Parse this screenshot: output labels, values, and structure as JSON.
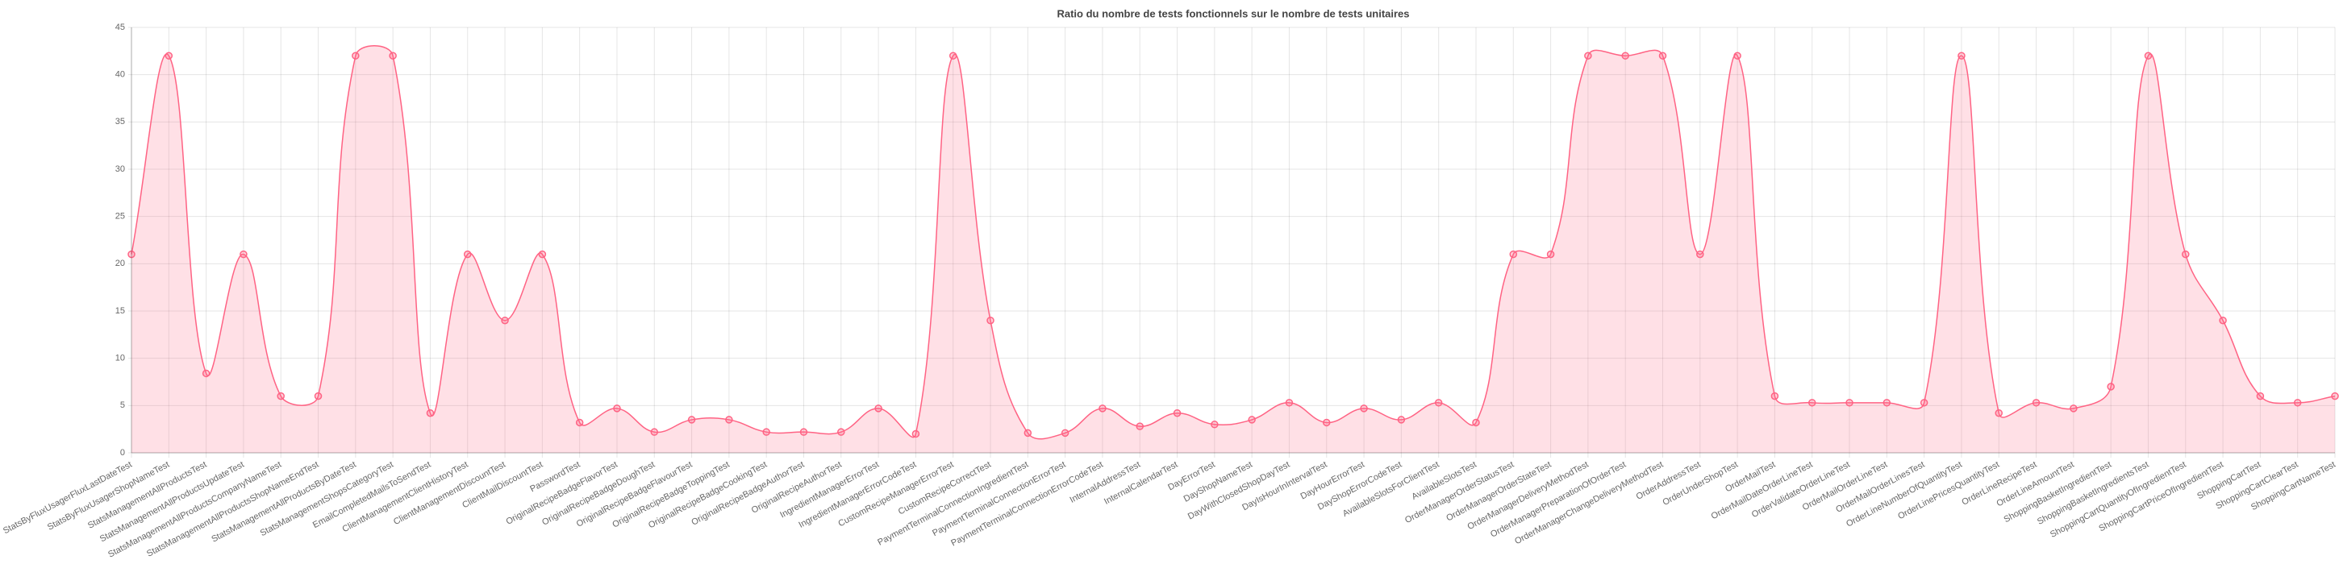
{
  "chart_data": {
    "type": "line",
    "title": "Ratio du nombre de tests fonctionnels sur le nombre de tests unitaires",
    "categories": [
      "StatsByFluxUsagerFluxLastDateTest",
      "StatsByFluxUsagerShopNameTest",
      "StatsManagementAllProductsTest",
      "StatsManagementAllProductsUpdateTest",
      "StatsManagementAllProductsCompanyNameTest",
      "StatsManagementAllProductsShopNameEndTest",
      "StatsManagementAllProductsByDateTest",
      "StatsManagementShopsCategoryTest",
      "EmailCompletedMailsToSendTest",
      "ClientManagementClientHistoryTest",
      "ClientManagementDiscountTest",
      "ClientMailDiscountTest",
      "PasswordTest",
      "OriginalRecipeBadgeFlavorTest",
      "OriginalRecipeBadgeDoughTest",
      "OriginalRecipeBadgeFlavourTest",
      "OriginalRecipeBadgeToppingTest",
      "OriginalRecipeBadgeCookingTest",
      "OriginalRecipeBadgeAuthorTest",
      "OriginalRecipeAuthorTest",
      "IngredientManagerErrorTest",
      "IngredientManagerErrorCodeTest",
      "CustomRecipeManagerErrorTest",
      "CustomRecipeCorrectTest",
      "PaymentTerminalConnectionIngredientTest",
      "PaymentTerminalConnectionErrorTest",
      "PaymentTerminalConnectionErrorCodeTest",
      "InternalAddressTest",
      "InternalCalendarTest",
      "DayErrorTest",
      "DayShopNameTest",
      "DayWithClosedShopDayTest",
      "DayIsHourInIntervalTest",
      "DayHourErrorTest",
      "DayShopErrorCodeTest",
      "AvailableSlotsForClientTest",
      "AvailableSlotsTest",
      "OrderManagerOrderStatusTest",
      "OrderManagerOrderStateTest",
      "OrderManagerDeliveryMethodTest",
      "OrderManagerPreparationOfOrderTest",
      "OrderManagerChangeDeliveryMethodTest",
      "OrderAddressTest",
      "OrderUnderShopTest",
      "OrderMailTest",
      "OrderMailDateOrderLineTest",
      "OrderValidateOrderLineTest",
      "OrderMailOrderLineTest",
      "OrderMailOrderLinesTest",
      "OrderLineNumberOfQuantityTest",
      "OrderLinePricesQuantityTest",
      "OrderLineRecipeTest",
      "OrderLineAmountTest",
      "ShoppingBasketIngredientTest",
      "ShoppingBasketIngredientsTest",
      "ShoppingCartQuantityOfIngredientTest",
      "ShoppingCartPriceOfIngredientTest",
      "ShoppingCartTest",
      "ShoppingCartClearTest",
      "ShoppingCartNameTest"
    ],
    "series": [
      {
        "color": "#ff6384",
        "values": [
          21,
          42,
          8.4,
          21,
          6,
          6,
          42,
          42,
          4.2,
          21,
          14,
          21,
          3.2,
          4.7,
          2.2,
          3.5,
          3.5,
          2.2,
          2.2,
          2.2,
          4.7,
          2,
          42,
          14,
          2.1,
          2.1,
          4.7,
          2.8,
          4.2,
          3,
          3.5,
          5.3,
          3.2,
          4.7,
          3.5,
          5.3,
          3.2,
          21,
          21,
          42,
          42,
          42,
          21,
          42,
          6,
          5.3,
          5.3,
          5.3,
          5.3,
          42,
          4.2,
          5.3,
          4.7,
          7,
          42,
          21,
          14,
          6,
          5.3,
          6
        ]
      }
    ],
    "ylim": [
      0,
      45
    ],
    "yticks": [
      0,
      5,
      10,
      15,
      20,
      25,
      30,
      35,
      40,
      45
    ],
    "grid": true
  }
}
